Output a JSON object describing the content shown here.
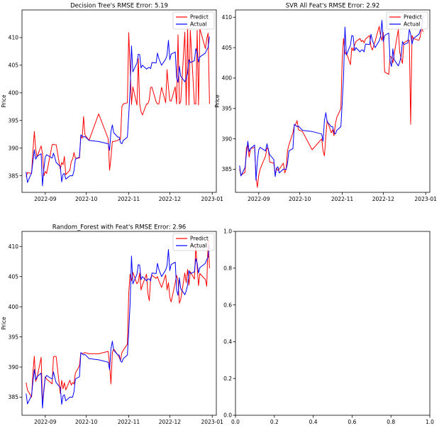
{
  "figure": {
    "title": ""
  },
  "chart_data": [
    {
      "type": "line",
      "title": "Decision Tree's RMSE Error: 5.19",
      "xlabel": "",
      "ylabel": "Price",
      "x_ticks": [
        "2022-09",
        "2022-10",
        "2022-11",
        "2022-12",
        "2023-01"
      ],
      "y_ticks": [
        385,
        390,
        395,
        400,
        405,
        410
      ],
      "xlim": [
        "2022-08-15",
        "2023-01-04"
      ],
      "ylim": [
        382,
        415
      ],
      "legend": "top-right",
      "grid": false,
      "x": [
        "2022-08-18",
        "2022-08-19",
        "2022-08-22",
        "2022-08-23",
        "2022-08-24",
        "2022-08-25",
        "2022-08-26",
        "2022-08-29",
        "2022-08-30",
        "2022-08-31",
        "2022-09-01",
        "2022-09-02",
        "2022-09-06",
        "2022-09-07",
        "2022-09-08",
        "2022-09-09",
        "2022-09-12",
        "2022-09-13",
        "2022-09-14",
        "2022-09-15",
        "2022-09-16",
        "2022-09-19",
        "2022-09-20",
        "2022-09-21",
        "2022-09-22",
        "2022-09-23",
        "2022-09-26",
        "2022-09-27",
        "2022-09-28",
        "2022-09-29",
        "2022-09-30",
        "2022-10-03",
        "2022-10-10",
        "2022-10-17",
        "2022-10-18",
        "2022-10-19",
        "2022-10-20",
        "2022-10-21",
        "2022-10-24",
        "2022-10-25",
        "2022-10-26",
        "2022-10-27",
        "2022-10-28",
        "2022-10-31",
        "2022-11-01",
        "2022-11-02",
        "2022-11-03",
        "2022-11-04",
        "2022-11-07",
        "2022-11-08",
        "2022-11-09",
        "2022-11-10",
        "2022-11-11",
        "2022-11-14",
        "2022-11-15",
        "2022-11-16",
        "2022-11-17",
        "2022-11-18",
        "2022-11-21",
        "2022-11-22",
        "2022-11-23",
        "2022-11-25",
        "2022-11-28",
        "2022-11-29",
        "2022-11-30",
        "2022-12-01",
        "2022-12-02",
        "2022-12-05",
        "2022-12-06",
        "2022-12-07",
        "2022-12-08",
        "2022-12-09",
        "2022-12-12",
        "2022-12-13",
        "2022-12-14",
        "2022-12-15",
        "2022-12-16",
        "2022-12-19",
        "2022-12-20",
        "2022-12-21",
        "2022-12-22",
        "2022-12-23",
        "2022-12-27",
        "2022-12-28",
        "2022-12-29",
        "2022-12-30"
      ],
      "series": [
        {
          "name": "Predict",
          "color": "#ff0000",
          "values": [
            384.8,
            385.6,
            385.4,
            389.4,
            393,
            389.8,
            388.4,
            390.4,
            389,
            385,
            385.8,
            385.4,
            390.6,
            390.7,
            390.6,
            390.6,
            386.2,
            387.4,
            387,
            388.5,
            385.2,
            386,
            387.6,
            388,
            389.2,
            388.2,
            388.2,
            392.2,
            391.8,
            395.7,
            392.4,
            391.4,
            396.2,
            391.7,
            386,
            388.2,
            391.2,
            391.2,
            391.4,
            391.6,
            391.6,
            397.5,
            398,
            398.2,
            410.9,
            404.6,
            397.9,
            401.1,
            397.8,
            406.2,
            398,
            396.6,
            396,
            398,
            398,
            398.8,
            401,
            401,
            398.4,
            398,
            398,
            401,
            398.2,
            404.2,
            401,
            398.6,
            398.5,
            401.1,
            398,
            410.5,
            398,
            398.4,
            411,
            397.8,
            412,
            397.8,
            411.3,
            398,
            398,
            411.3,
            397.8,
            411.6,
            408,
            409.8,
            410.8,
            398
          ]
        },
        {
          "name": "Actual",
          "color": "#0000ff",
          "values": [
            385.7,
            383.8,
            385.5,
            387.6,
            389.7,
            388,
            388.5,
            389,
            383.2,
            386.3,
            388.4,
            388.8,
            388.2,
            389.1,
            388.3,
            387.4,
            386.7,
            383.9,
            385.3,
            385.4,
            384.4,
            385,
            385,
            385,
            385.9,
            388,
            388.4,
            392.4,
            392.2,
            392,
            392.1,
            391.4,
            391.2,
            390.8,
            389.6,
            393,
            394.2,
            392.8,
            392,
            392,
            391,
            390.8,
            391.4,
            392,
            396,
            400.4,
            408.5,
            403.8,
            405.4,
            407,
            406.9,
            404.5,
            405,
            404.3,
            404.5,
            404.6,
            404.4,
            405.5,
            405.4,
            407.2,
            406.2,
            405,
            406.1,
            406.8,
            409.5,
            406,
            407,
            407.4,
            402.8,
            401.9,
            404.8,
            403,
            402,
            402.6,
            403.6,
            406,
            405.5,
            405.8,
            408,
            407.2,
            405.6,
            406.5,
            407.2,
            407.8,
            408.2,
            410.2
          ]
        }
      ]
    },
    {
      "type": "line",
      "title": "SVR All Feat's RMSE Error: 2.92",
      "xlabel": "",
      "ylabel": "Price",
      "x_ticks": [
        "2022-09",
        "2022-10",
        "2022-11",
        "2022-12",
        "2023-01"
      ],
      "y_ticks": [
        385,
        390,
        395,
        400,
        405,
        410
      ],
      "xlim": [
        "2022-08-15",
        "2023-01-04"
      ],
      "ylim": [
        381.2,
        411.2
      ],
      "legend": "top-right",
      "grid": false,
      "x": [
        "2022-08-18",
        "2022-08-19",
        "2022-08-22",
        "2022-08-23",
        "2022-08-24",
        "2022-08-25",
        "2022-08-26",
        "2022-08-29",
        "2022-08-30",
        "2022-08-31",
        "2022-09-01",
        "2022-09-02",
        "2022-09-06",
        "2022-09-07",
        "2022-09-08",
        "2022-09-09",
        "2022-09-12",
        "2022-09-13",
        "2022-09-14",
        "2022-09-15",
        "2022-09-16",
        "2022-09-19",
        "2022-09-20",
        "2022-09-21",
        "2022-09-22",
        "2022-09-23",
        "2022-09-26",
        "2022-09-27",
        "2022-09-28",
        "2022-09-29",
        "2022-09-30",
        "2022-10-03",
        "2022-10-10",
        "2022-10-17",
        "2022-10-18",
        "2022-10-19",
        "2022-10-20",
        "2022-10-21",
        "2022-10-24",
        "2022-10-25",
        "2022-10-26",
        "2022-10-27",
        "2022-10-28",
        "2022-10-31",
        "2022-11-01",
        "2022-11-02",
        "2022-11-03",
        "2022-11-04",
        "2022-11-07",
        "2022-11-08",
        "2022-11-09",
        "2022-11-10",
        "2022-11-11",
        "2022-11-14",
        "2022-11-15",
        "2022-11-16",
        "2022-11-17",
        "2022-11-18",
        "2022-11-21",
        "2022-11-22",
        "2022-11-23",
        "2022-11-25",
        "2022-11-28",
        "2022-11-29",
        "2022-11-30",
        "2022-12-01",
        "2022-12-02",
        "2022-12-05",
        "2022-12-06",
        "2022-12-07",
        "2022-12-08",
        "2022-12-09",
        "2022-12-12",
        "2022-12-13",
        "2022-12-14",
        "2022-12-15",
        "2022-12-16",
        "2022-12-19",
        "2022-12-20",
        "2022-12-21",
        "2022-12-22",
        "2022-12-23",
        "2022-12-27",
        "2022-12-28",
        "2022-12-29",
        "2022-12-30"
      ],
      "series": [
        {
          "name": "Predict",
          "color": "#ff0000",
          "values": [
            385,
            384,
            384.5,
            388.5,
            389,
            387,
            388.4,
            388.6,
            383.8,
            382,
            384,
            385,
            387.2,
            388.5,
            388.4,
            386.2,
            386,
            384.2,
            385.2,
            384.8,
            385,
            386,
            384.4,
            385,
            388,
            389,
            391,
            392.2,
            392.4,
            393,
            391.5,
            391.2,
            388.2,
            390,
            388,
            387.2,
            390.5,
            393,
            391,
            391.5,
            390.5,
            392.5,
            393.5,
            395,
            403,
            406.5,
            404,
            404.2,
            402.2,
            405,
            404.5,
            405.4,
            406,
            406.5,
            406,
            406.2,
            405.8,
            406.4,
            407,
            405.2,
            404.6,
            406,
            408.5,
            407,
            406.2,
            407.5,
            401,
            400.6,
            403.6,
            403.4,
            402.5,
            404,
            408,
            404.3,
            403.2,
            402.4,
            405.8,
            406.2,
            406.2,
            392.4,
            407,
            406.5,
            406.2,
            406.8,
            408.4,
            407.6
          ]
        },
        {
          "name": "Actual",
          "color": "#0000ff",
          "values": [
            385.6,
            383.9,
            385.3,
            387.5,
            389.6,
            387.9,
            388.4,
            389,
            383.2,
            386.4,
            388.2,
            388.6,
            388,
            389.2,
            388.2,
            387.4,
            386.6,
            383.8,
            385.2,
            385.4,
            384.4,
            385,
            385,
            385,
            385.9,
            388,
            388.4,
            392.4,
            392.2,
            392,
            392.1,
            391.4,
            391.2,
            390.8,
            389.6,
            393,
            394.3,
            392.8,
            392,
            392,
            391,
            390.8,
            391.4,
            392,
            396,
            400.4,
            408.4,
            403.8,
            405.4,
            407,
            406.9,
            404.5,
            405,
            404.3,
            404.6,
            404.6,
            404.3,
            405.6,
            405.5,
            407.2,
            406.2,
            405,
            406.1,
            406.8,
            409.5,
            406,
            407,
            407.4,
            402.8,
            401.9,
            404.8,
            403,
            402,
            402.6,
            403.6,
            406,
            405.5,
            405.8,
            408,
            407.2,
            405.6,
            406.5,
            407.2,
            407.8,
            408.2,
            410.2
          ]
        }
      ]
    },
    {
      "type": "line",
      "title": "Random_Forest with Feat's RMSE Error: 2.96",
      "xlabel": "",
      "ylabel": "Price",
      "x_ticks": [
        "2022-09",
        "2022-10",
        "2022-11",
        "2022-12",
        "2023-01"
      ],
      "y_ticks": [
        385,
        390,
        395,
        400,
        405,
        410
      ],
      "xlim": [
        "2022-08-15",
        "2023-01-04"
      ],
      "ylim": [
        382,
        412.5
      ],
      "legend": "top-right",
      "grid": false,
      "x": [
        "2022-08-18",
        "2022-08-19",
        "2022-08-22",
        "2022-08-23",
        "2022-08-24",
        "2022-08-25",
        "2022-08-26",
        "2022-08-29",
        "2022-08-30",
        "2022-08-31",
        "2022-09-01",
        "2022-09-02",
        "2022-09-06",
        "2022-09-07",
        "2022-09-08",
        "2022-09-09",
        "2022-09-12",
        "2022-09-13",
        "2022-09-14",
        "2022-09-15",
        "2022-09-16",
        "2022-09-19",
        "2022-09-20",
        "2022-09-21",
        "2022-09-22",
        "2022-09-23",
        "2022-09-26",
        "2022-09-27",
        "2022-09-28",
        "2022-09-29",
        "2022-09-30",
        "2022-10-03",
        "2022-10-10",
        "2022-10-17",
        "2022-10-18",
        "2022-10-19",
        "2022-10-20",
        "2022-10-21",
        "2022-10-24",
        "2022-10-25",
        "2022-10-26",
        "2022-10-27",
        "2022-10-28",
        "2022-10-31",
        "2022-11-01",
        "2022-11-02",
        "2022-11-03",
        "2022-11-04",
        "2022-11-07",
        "2022-11-08",
        "2022-11-09",
        "2022-11-10",
        "2022-11-11",
        "2022-11-14",
        "2022-11-15",
        "2022-11-16",
        "2022-11-17",
        "2022-11-18",
        "2022-11-21",
        "2022-11-22",
        "2022-11-23",
        "2022-11-25",
        "2022-11-28",
        "2022-11-29",
        "2022-11-30",
        "2022-12-01",
        "2022-12-02",
        "2022-12-05",
        "2022-12-06",
        "2022-12-07",
        "2022-12-08",
        "2022-12-09",
        "2022-12-12",
        "2022-12-13",
        "2022-12-14",
        "2022-12-15",
        "2022-12-16",
        "2022-12-19",
        "2022-12-20",
        "2022-12-21",
        "2022-12-22",
        "2022-12-23",
        "2022-12-27",
        "2022-12-28",
        "2022-12-29",
        "2022-12-30"
      ],
      "series": [
        {
          "name": "Predict",
          "color": "#ff0000",
          "values": [
            387.4,
            386.2,
            385,
            389,
            391.8,
            387.6,
            388.2,
            391.6,
            384.3,
            386,
            388.4,
            388,
            387.2,
            391.7,
            391.8,
            391.7,
            385.6,
            387.8,
            386.4,
            387.4,
            386.2,
            387.8,
            387,
            387.4,
            387.2,
            389,
            390.2,
            392.4,
            392.2,
            392.3,
            392.4,
            392.2,
            392.2,
            392.6,
            390.4,
            387.2,
            392.4,
            393,
            392,
            391.6,
            391.1,
            392.4,
            392.8,
            393.8,
            402.2,
            405.4,
            404.3,
            405.7,
            403.8,
            404.2,
            405.6,
            402.8,
            403.6,
            405.4,
            402.2,
            401,
            404.8,
            405.2,
            404.7,
            405,
            404.3,
            403.2,
            405.3,
            402.8,
            404,
            401.6,
            400.8,
            404,
            405.2,
            404.4,
            400.6,
            401.2,
            405.6,
            404,
            406.2,
            403.6,
            405.8,
            404.6,
            410.1,
            406.7,
            403.5,
            405.5,
            404.5,
            403.4,
            411.2,
            406.4
          ]
        },
        {
          "name": "Actual",
          "color": "#0000ff",
          "values": [
            385.6,
            383.9,
            385.3,
            387.5,
            389.6,
            387.9,
            388.4,
            389,
            383.2,
            386.4,
            388.2,
            388.6,
            388,
            389.2,
            388.2,
            387.4,
            386.6,
            383.8,
            385.2,
            385.4,
            384.4,
            385,
            385,
            385,
            385.9,
            388,
            388.4,
            392.4,
            392.2,
            392,
            392.1,
            391.4,
            391.2,
            390.8,
            389.6,
            393,
            394.3,
            392.8,
            392,
            392,
            391,
            390.8,
            391.4,
            392,
            396,
            400.4,
            408.4,
            403.8,
            405.4,
            407,
            406.9,
            404.5,
            405,
            404.3,
            404.6,
            404.6,
            404.3,
            405.6,
            405.5,
            407.2,
            406.2,
            405,
            406.1,
            406.8,
            409.5,
            406,
            407,
            407.4,
            402.8,
            401.9,
            404.8,
            403,
            402,
            402.6,
            403.6,
            406,
            405.5,
            405.8,
            408,
            407.2,
            405.6,
            406.5,
            407.2,
            407.8,
            408.2,
            410.2
          ]
        }
      ]
    },
    {
      "type": "line",
      "title": "",
      "xlabel": "",
      "ylabel": "",
      "x_ticks": [
        "0.0",
        "0.2",
        "0.4",
        "0.6",
        "0.8",
        "1.0"
      ],
      "y_ticks": [
        "0.0",
        "0.2",
        "0.4",
        "0.6",
        "0.8",
        "1.0"
      ],
      "xlim": [
        0,
        1
      ],
      "ylim": [
        0,
        1
      ],
      "legend": "none",
      "grid": false,
      "series": []
    }
  ]
}
